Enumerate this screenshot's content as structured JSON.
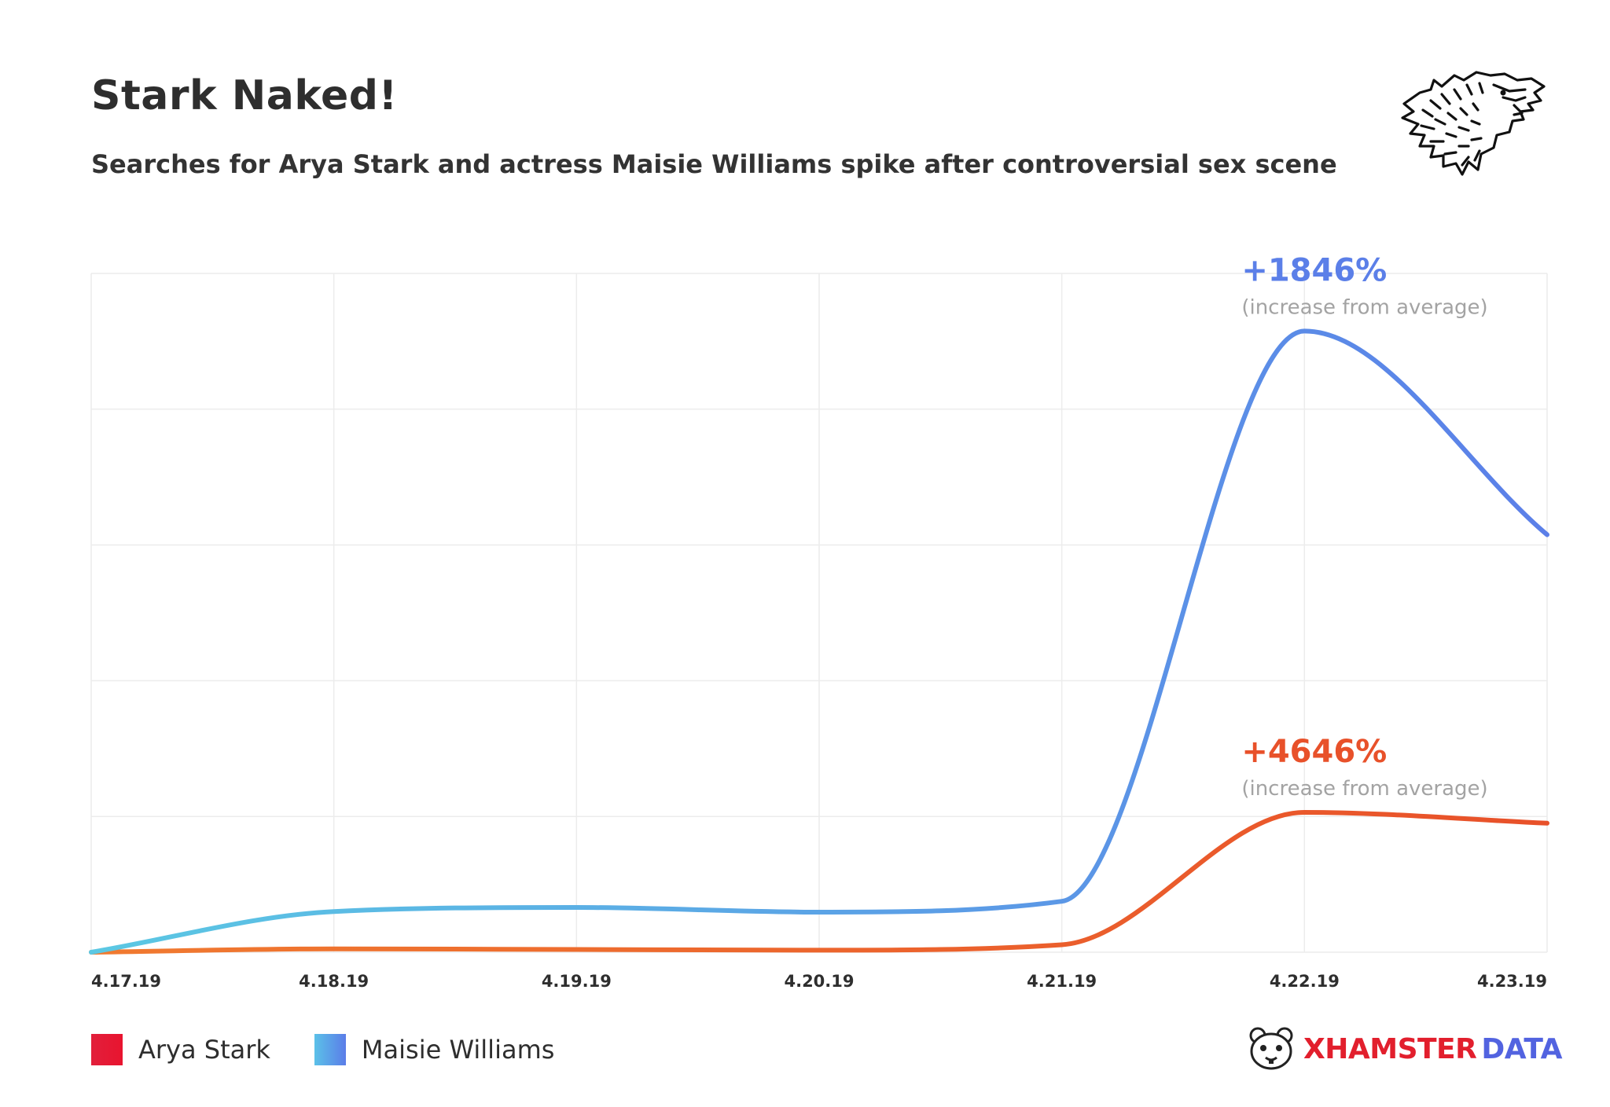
{
  "header": {
    "title": "Stark Naked!",
    "subtitle": "Searches for Arya Stark and actress Maisie Williams spike after controversial sex scene"
  },
  "legend": {
    "items": [
      {
        "label": "Arya Stark",
        "color": "#e21f3b",
        "color2": "#e8142f"
      },
      {
        "label": "Maisie Williams",
        "color": "#5bc1e8",
        "color2": "#5b7de8"
      }
    ]
  },
  "brand": {
    "name_a": "XHAMSTER",
    "name_b": "DATA",
    "color_a": "#e21f2d",
    "color_b": "#5263e0",
    "icon": "hamster-icon"
  },
  "header_icon": "wolf-head-icon",
  "chart_data": {
    "type": "line",
    "x": [
      "4.17.19",
      "4.18.19",
      "4.19.19",
      "4.20.19",
      "4.21.19",
      "4.22.19",
      "4.23.19"
    ],
    "series": [
      {
        "name": "Maisie Williams",
        "values": [
          0,
          6.0,
          6.6,
          5.9,
          7.5,
          91.5,
          61.5
        ],
        "color_start": "#5bc8e3",
        "color_end": "#5b7fe8"
      },
      {
        "name": "Arya Stark",
        "values": [
          0,
          0.5,
          0.4,
          0.3,
          1.1,
          20.6,
          19.0
        ],
        "color_start": "#f07a30",
        "color_end": "#e8512a"
      }
    ],
    "annotations": [
      {
        "series": "Maisie Williams",
        "value_text": "+1846%",
        "note": "(increase from average)",
        "color": "#5b7fe8"
      },
      {
        "series": "Arya Stark",
        "value_text": "+4646%",
        "note": "(increase from average)",
        "color": "#e8512a"
      }
    ],
    "ylim": [
      0,
      100
    ],
    "grid": true,
    "legend_position": "bottom-left",
    "yticks_labeled": false
  }
}
